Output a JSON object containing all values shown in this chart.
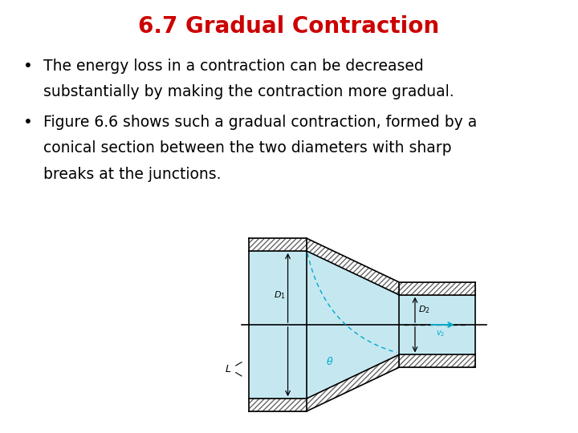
{
  "title": "6.7 Gradual Contraction",
  "title_color": "#cc0000",
  "title_fontsize": 20,
  "bullet1_line1": "The energy loss in a contraction can be decreased",
  "bullet1_line2": "substantially by making the contraction more gradual.",
  "bullet2_line1": "Figure 6.6 shows such a gradual contraction, formed by a",
  "bullet2_line2": "conical section between the two diameters with sharp",
  "bullet2_line3": "breaks at the junctions.",
  "text_fontsize": 13.5,
  "bg_color": "#ffffff",
  "diagram": {
    "light_blue": "#c5e8f0",
    "hatch_color": "#666666",
    "line_color": "#000000",
    "cyan_line": "#00aacc",
    "arrow_color": "#00aacc",
    "label_color": "#000000"
  }
}
